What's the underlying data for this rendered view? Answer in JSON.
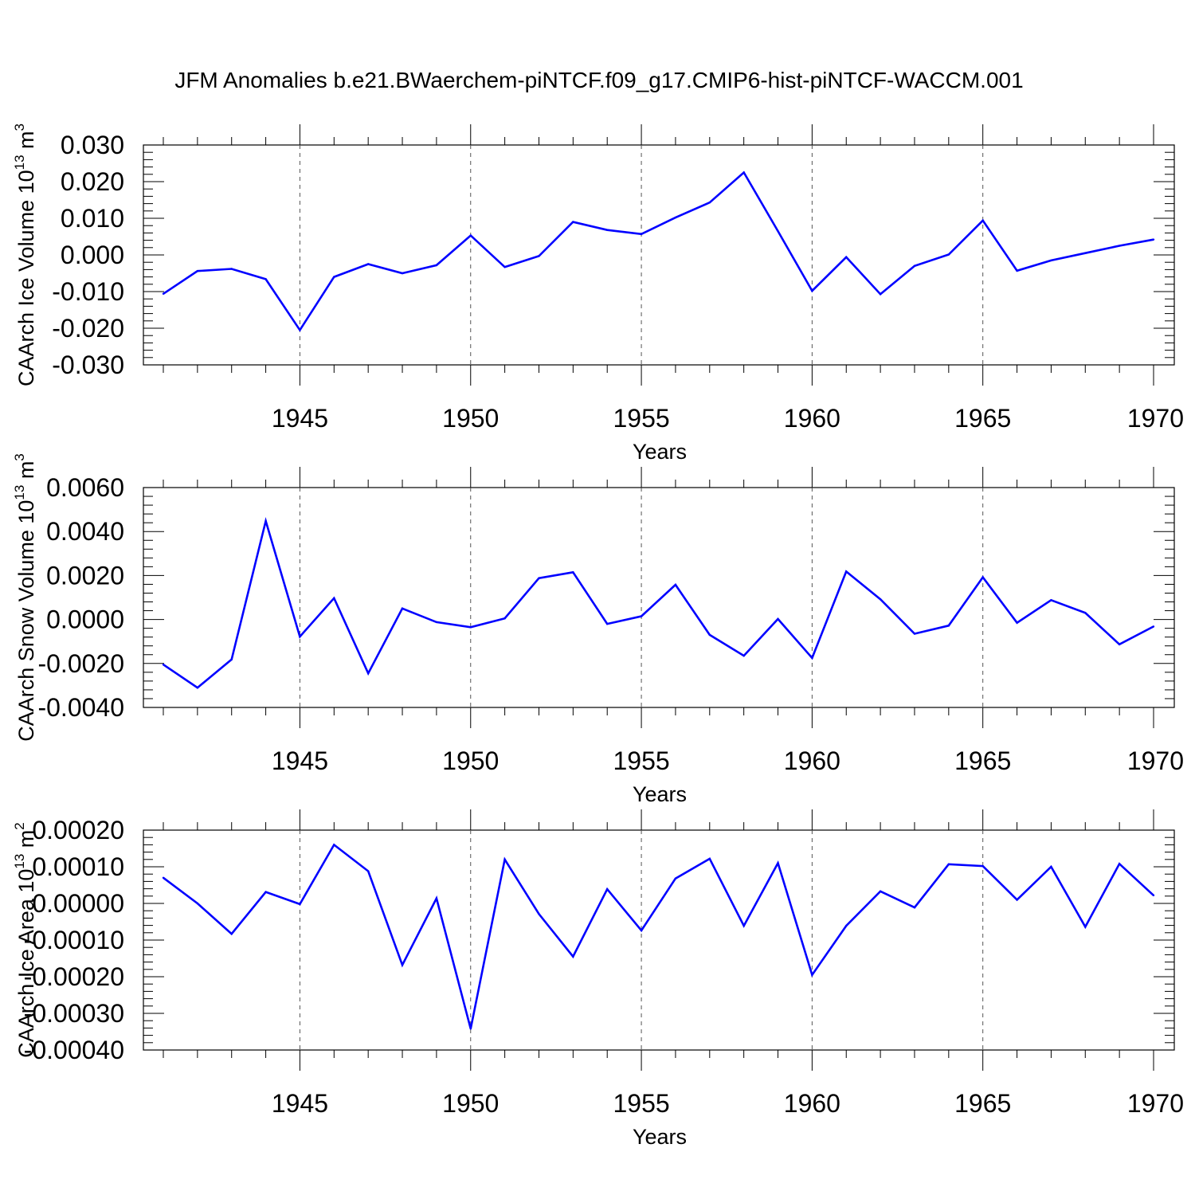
{
  "title": "JFM Anomalies b.e21.BWaerchem-piNTCF.f09_g17.CMIP6-hist-piNTCF-WACCM.001",
  "line_color": "#0000ff",
  "chart_data": [
    {
      "type": "line",
      "ylabel": "CAArch Ice Volume 10",
      "ylabel_exp": "13",
      "ylabel_unit": "m",
      "ylabel_unit_exp": "3",
      "xlabel": "Years",
      "xlim": [
        1941,
        1970
      ],
      "ylim": [
        -0.03,
        0.03
      ],
      "yticks": [
        -0.03,
        -0.02,
        -0.01,
        0.0,
        0.01,
        0.02,
        0.03
      ],
      "ytick_labels": [
        "-0.030",
        "-0.020",
        "-0.010",
        "0.000",
        "0.010",
        "0.020",
        "0.030"
      ],
      "xticks": [
        1945,
        1950,
        1955,
        1960,
        1965,
        1970
      ],
      "xtick_labels": [
        "1945",
        "1950",
        "1955",
        "1960",
        "1965",
        "1970"
      ],
      "x": [
        1941,
        1942,
        1943,
        1944,
        1945,
        1946,
        1947,
        1948,
        1949,
        1950,
        1951,
        1952,
        1953,
        1954,
        1955,
        1956,
        1957,
        1958,
        1959,
        1960,
        1961,
        1962,
        1963,
        1964,
        1965,
        1966,
        1967,
        1968,
        1969,
        1970
      ],
      "values": [
        -0.0106,
        -0.0044,
        -0.0038,
        -0.0066,
        -0.0205,
        -0.006,
        -0.0025,
        -0.005,
        -0.0028,
        0.0053,
        -0.0033,
        -0.0003,
        0.009,
        0.0068,
        0.0057,
        0.0102,
        0.0143,
        0.0225,
        0.0065,
        -0.0098,
        -0.0006,
        -0.0107,
        -0.003,
        0.0001,
        0.0094,
        -0.0043,
        -0.0015,
        0.0005,
        0.0025,
        0.0042
      ]
    },
    {
      "type": "line",
      "ylabel": "CAArch Snow Volume 10",
      "ylabel_exp": "13",
      "ylabel_unit": "m",
      "ylabel_unit_exp": "3",
      "xlabel": "Years",
      "xlim": [
        1941,
        1970
      ],
      "ylim": [
        -0.004,
        0.006
      ],
      "yticks": [
        -0.004,
        -0.002,
        0.0,
        0.002,
        0.004,
        0.006
      ],
      "ytick_labels": [
        "-0.0040",
        "-0.0020",
        "0.0000",
        "0.0020",
        "0.0040",
        "0.0060"
      ],
      "xticks": [
        1945,
        1950,
        1955,
        1960,
        1965,
        1970
      ],
      "xtick_labels": [
        "1945",
        "1950",
        "1955",
        "1960",
        "1965",
        "1970"
      ],
      "x": [
        1941,
        1942,
        1943,
        1944,
        1945,
        1946,
        1947,
        1948,
        1949,
        1950,
        1951,
        1952,
        1953,
        1954,
        1955,
        1956,
        1957,
        1958,
        1959,
        1960,
        1961,
        1962,
        1963,
        1964,
        1965,
        1966,
        1967,
        1968,
        1969,
        1970
      ],
      "values": [
        -0.00205,
        -0.0031,
        -0.00182,
        0.00448,
        -0.00078,
        0.00097,
        -0.00245,
        0.0005,
        -0.00012,
        -0.00035,
        5e-05,
        0.00188,
        0.00215,
        -0.0002,
        0.00015,
        0.00158,
        -0.0007,
        -0.00165,
        2e-05,
        -0.00175,
        0.00218,
        0.00092,
        -0.00065,
        -0.00028,
        0.00192,
        -0.00015,
        0.00088,
        0.0003,
        -0.00113,
        -0.00032
      ]
    },
    {
      "type": "line",
      "ylabel": "CAArch Ice Area 10",
      "ylabel_exp": "13",
      "ylabel_unit": "m",
      "ylabel_unit_exp": "2",
      "xlabel": "Years",
      "xlim": [
        1941,
        1970
      ],
      "ylim": [
        -0.0004,
        0.0002
      ],
      "yticks": [
        -0.0004,
        -0.0003,
        -0.0002,
        -0.0001,
        0.0,
        0.0001,
        0.0002
      ],
      "ytick_labels": [
        "-0.00040",
        "-0.00030",
        "-0.00020",
        "-0.00010",
        "0.00000",
        "0.00010",
        "0.00020"
      ],
      "xticks": [
        1945,
        1950,
        1955,
        1960,
        1965,
        1970
      ],
      "xtick_labels": [
        "1945",
        "1950",
        "1955",
        "1960",
        "1965",
        "1970"
      ],
      "x": [
        1941,
        1942,
        1943,
        1944,
        1945,
        1946,
        1947,
        1948,
        1949,
        1950,
        1951,
        1952,
        1953,
        1954,
        1955,
        1956,
        1957,
        1958,
        1959,
        1960,
        1961,
        1962,
        1963,
        1964,
        1965,
        1966,
        1967,
        1968,
        1969,
        1970
      ],
      "values": [
        7e-05,
        0.0,
        -8.3e-05,
        3.1e-05,
        -2e-06,
        0.00016,
        8.8e-05,
        -0.000168,
        1.4e-05,
        -0.000342,
        0.00012,
        -2.9e-05,
        -0.000145,
        3.9e-05,
        -7.4e-05,
        6.8e-05,
        0.000122,
        -6.1e-05,
        0.00011,
        -0.000195,
        -6.1e-05,
        3.3e-05,
        -1.1e-05,
        0.000107,
        0.000102,
        1e-05,
        0.0001,
        -6.4e-05,
        0.000108,
        2.2e-05
      ]
    }
  ]
}
